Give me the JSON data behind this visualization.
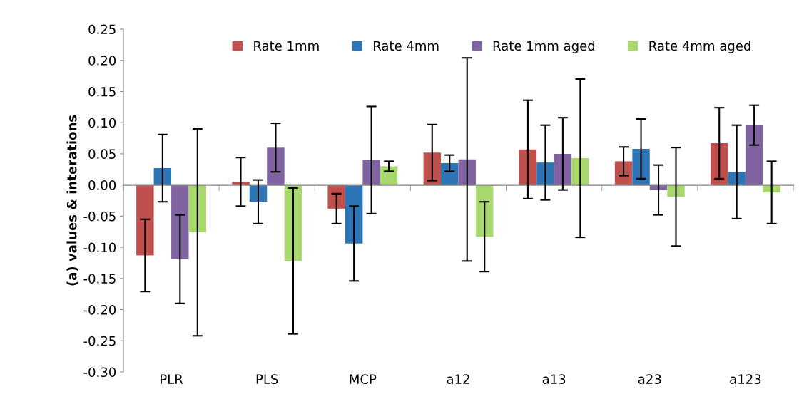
{
  "chart_data": {
    "type": "bar",
    "ylabel": "(a) values & interations",
    "categories": [
      "PLR",
      "PLS",
      "MCP",
      "a12",
      "a13",
      "a23",
      "a123"
    ],
    "series": [
      {
        "name": "Rate 1mm",
        "color": "#c0504d",
        "values": [
          -0.113,
          0.005,
          -0.038,
          0.052,
          0.057,
          0.038,
          0.067
        ],
        "errors": [
          0.058,
          0.039,
          0.024,
          0.045,
          0.079,
          0.023,
          0.057
        ]
      },
      {
        "name": "Rate 4mm",
        "color": "#2e75b6",
        "values": [
          0.027,
          -0.027,
          -0.094,
          0.035,
          0.036,
          0.058,
          0.021
        ],
        "errors": [
          0.054,
          0.035,
          0.06,
          0.013,
          0.06,
          0.048,
          0.075
        ]
      },
      {
        "name": "Rate 1mm aged",
        "color": "#8064a2",
        "values": [
          -0.119,
          0.06,
          0.04,
          0.041,
          0.05,
          -0.008,
          0.096
        ],
        "errors": [
          0.071,
          0.039,
          0.086,
          0.163,
          0.058,
          0.04,
          0.032
        ]
      },
      {
        "name": "Rate 4mm aged",
        "color": "#a9d86e",
        "values": [
          -0.076,
          -0.122,
          0.03,
          -0.083,
          0.043,
          -0.019,
          -0.012
        ],
        "errors": [
          0.166,
          0.117,
          0.008,
          0.056,
          0.127,
          0.079,
          0.05
        ]
      }
    ],
    "ylim": [
      -0.3,
      0.25
    ],
    "yticks": [
      {
        "value": -0.3,
        "label": "-0.30"
      },
      {
        "value": -0.25,
        "label": "-0.25"
      },
      {
        "value": -0.2,
        "label": "-0.20"
      },
      {
        "value": -0.15,
        "label": "-0.15"
      },
      {
        "value": -0.1,
        "label": "-0.10"
      },
      {
        "value": -0.05,
        "label": "-0.05"
      },
      {
        "value": 0,
        "label": "0.00"
      },
      {
        "value": 0.05,
        "label": "0.05"
      },
      {
        "value": 0.1,
        "label": "0.10"
      },
      {
        "value": 0.15,
        "label": "0.15"
      },
      {
        "value": 0.2,
        "label": "0.20"
      },
      {
        "value": 0.25,
        "label": "0.25"
      }
    ],
    "legend": "top"
  }
}
